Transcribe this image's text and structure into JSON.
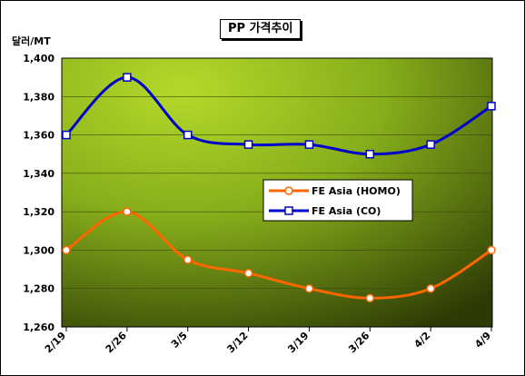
{
  "chart_data": {
    "type": "line",
    "title": "PP 가격추이",
    "ylabel": "달러/MT",
    "xlabel": "",
    "categories": [
      "2/19",
      "2/26",
      "3/5",
      "3/12",
      "3/19",
      "3/26",
      "4/2",
      "4/9"
    ],
    "ylim": [
      1260,
      1400
    ],
    "yticks": [
      1260,
      1280,
      1300,
      1320,
      1340,
      1360,
      1380,
      1400
    ],
    "ytick_labels": [
      "1,260",
      "1,280",
      "1,300",
      "1,320",
      "1,340",
      "1,360",
      "1,380",
      "1,400"
    ],
    "grid": true,
    "legend_position": "center-right",
    "series": [
      {
        "name": "FE Asia (HOMO)",
        "color": "#FF6600",
        "marker": "circle",
        "values": [
          1300,
          1320,
          1295,
          1288,
          1280,
          1275,
          1280,
          1300
        ]
      },
      {
        "name": "FE Asia (CO)",
        "color": "#0000CC",
        "marker": "square",
        "values": [
          1360,
          1390,
          1360,
          1355,
          1355,
          1350,
          1355,
          1375
        ]
      }
    ]
  }
}
